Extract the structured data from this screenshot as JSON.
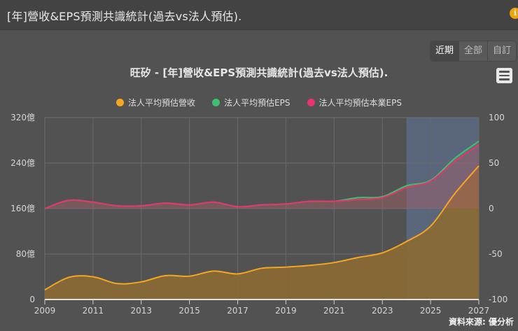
{
  "window": {
    "title": "[年]營收&EPS預測共識統計(過去vs法人預估).",
    "info_icon": "info-icon"
  },
  "range_selector": {
    "buttons": [
      {
        "label": "近期",
        "active": true
      },
      {
        "label": "全部",
        "active": false
      },
      {
        "label": "自訂",
        "active": false
      }
    ]
  },
  "menu": {
    "icon": "hamburger-menu-icon"
  },
  "source": "資料來源: 優分析",
  "colors": {
    "revenue": "#f5a623",
    "eps": "#3fbf6f",
    "core_eps": "#e8336d",
    "forecast_band": "#5a6a84",
    "background": "#525252"
  },
  "chart_data": {
    "type": "area",
    "title": "旺矽 - [年]營收&EPS預測共識統計(過去vs法人預估).",
    "x": [
      2009,
      2010,
      2011,
      2012,
      2013,
      2014,
      2015,
      2016,
      2017,
      2018,
      2019,
      2020,
      2021,
      2022,
      2023,
      2024,
      2025,
      2026,
      2027
    ],
    "x_ticks": [
      "2009",
      "2011",
      "2013",
      "2015",
      "2017",
      "2019",
      "2021",
      "2023",
      "2025",
      "2027"
    ],
    "series": [
      {
        "name": "法人平均預估營收",
        "axis": "left",
        "unit": "億",
        "values": [
          17,
          39,
          40,
          28,
          31,
          42,
          41,
          50,
          45,
          55,
          57,
          60,
          65,
          74,
          82,
          102,
          129,
          186,
          235
        ]
      },
      {
        "name": "法人平均預估EPS",
        "axis": "right",
        "values": [
          0,
          9,
          7,
          3,
          3,
          6,
          4,
          7,
          2,
          4,
          5,
          8,
          8,
          12,
          13,
          25,
          31,
          55,
          74
        ]
      },
      {
        "name": "法人平均預估本業EPS",
        "axis": "right",
        "values": [
          0,
          9,
          7,
          3,
          3,
          6,
          4,
          7,
          2,
          4,
          5,
          8,
          8,
          10,
          12,
          23,
          30,
          52,
          70
        ]
      }
    ],
    "left_axis": {
      "ticks": [
        "0",
        "80億",
        "160億",
        "240億",
        "320億"
      ],
      "range": [
        0,
        320
      ]
    },
    "right_axis": {
      "ticks": [
        "-100",
        "-50",
        "0",
        "50",
        "100"
      ],
      "range": [
        -100,
        100
      ]
    },
    "forecast_band": {
      "from": 2024,
      "to": 2027
    },
    "legend_position": "top",
    "grid": true
  }
}
